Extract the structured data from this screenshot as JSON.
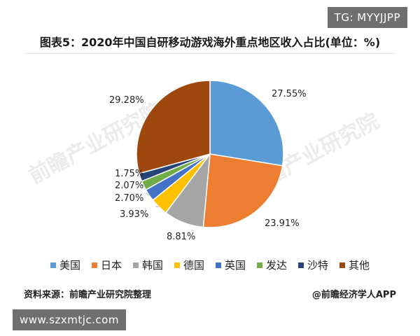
{
  "overlay_top": "TG: MYYJJPP",
  "overlay_bottom": "www.szxmtjc.com",
  "watermark_text": "前瞻产业研究院",
  "chart_data": {
    "type": "pie",
    "title": "图表5：2020年中国自研移动游戏海外重点地区收入占比(单位：%)",
    "categories": [
      "美国",
      "日本",
      "韩国",
      "德国",
      "英国",
      "发达",
      "沙特",
      "其他"
    ],
    "values": [
      27.55,
      23.91,
      8.81,
      3.93,
      2.7,
      2.07,
      1.75,
      29.28
    ],
    "value_labels": [
      "27.55%",
      "23.91%",
      "8.81%",
      "3.93%",
      "2.70%",
      "2.07%",
      "1.75%",
      "29.28%"
    ],
    "colors": [
      "#5b9bd5",
      "#ed7d31",
      "#a5a5a5",
      "#ffc000",
      "#4472c4",
      "#70ad47",
      "#264478",
      "#9e480e"
    ],
    "legend_position": "bottom",
    "start_angle_deg": 0,
    "direction": "clockwise"
  },
  "source_left": "资料来源：前瞻产业研究院整理",
  "source_right": "@前瞻经济学人APP"
}
